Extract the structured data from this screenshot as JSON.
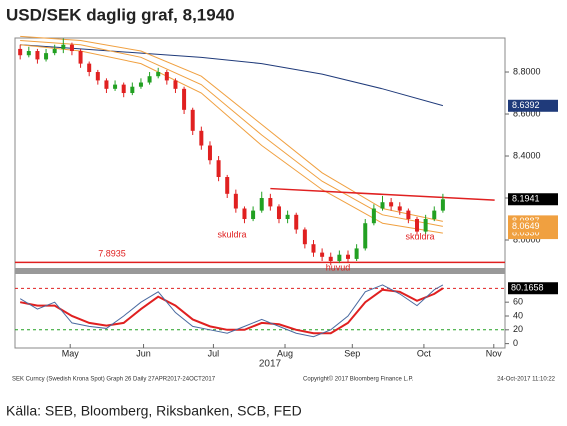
{
  "chart_data": {
    "type": "candlestick",
    "title": "USD/SEK daglig graf, 8,1940",
    "categories": [
      null,
      null,
      null,
      null,
      null,
      null,
      null,
      null,
      null,
      null,
      null,
      null,
      null,
      null,
      null,
      null,
      null,
      null,
      null,
      null,
      null,
      null,
      null,
      null,
      null,
      null,
      null,
      null,
      null,
      null,
      null,
      null,
      null,
      null,
      null,
      null,
      null,
      null,
      null,
      null,
      null,
      null,
      null,
      null,
      null,
      null,
      null,
      null,
      null,
      null
    ],
    "open": [
      8.91,
      8.88,
      8.9,
      8.86,
      8.89,
      8.91,
      8.93,
      8.9,
      8.84,
      8.8,
      8.76,
      8.72,
      8.74,
      8.7,
      8.73,
      8.75,
      8.78,
      8.8,
      8.76,
      8.72,
      8.62,
      8.52,
      8.45,
      8.38,
      8.3,
      8.22,
      8.15,
      8.1,
      8.14,
      8.2,
      8.16,
      8.1,
      8.12,
      8.05,
      7.98,
      7.94,
      7.92,
      7.9,
      7.93,
      7.91,
      7.96,
      8.08,
      8.15,
      8.18,
      8.16,
      8.14,
      8.1,
      8.04,
      8.1,
      8.14
    ],
    "high": [
      8.93,
      8.92,
      8.91,
      8.91,
      8.93,
      8.96,
      8.94,
      8.91,
      8.85,
      8.81,
      8.77,
      8.76,
      8.75,
      8.75,
      8.77,
      8.8,
      8.82,
      8.81,
      8.77,
      8.73,
      8.63,
      8.54,
      8.47,
      8.4,
      8.31,
      8.24,
      8.16,
      8.16,
      8.23,
      8.22,
      8.17,
      8.14,
      8.13,
      8.06,
      8.0,
      7.96,
      7.94,
      7.95,
      7.95,
      7.98,
      8.1,
      8.17,
      8.21,
      8.2,
      8.18,
      8.15,
      8.11,
      8.12,
      8.16,
      8.22
    ],
    "low": [
      8.86,
      8.87,
      8.84,
      8.85,
      8.88,
      8.89,
      8.88,
      8.82,
      8.78,
      8.74,
      8.7,
      8.71,
      8.68,
      8.69,
      8.72,
      8.74,
      8.77,
      8.74,
      8.7,
      8.6,
      8.5,
      8.43,
      8.36,
      8.28,
      8.2,
      8.13,
      8.08,
      8.09,
      8.13,
      8.14,
      8.08,
      8.08,
      8.03,
      7.96,
      7.92,
      7.9,
      7.88,
      7.89,
      7.89,
      7.9,
      7.95,
      8.07,
      8.14,
      8.14,
      8.12,
      8.08,
      8.02,
      8.03,
      8.09,
      8.13
    ],
    "close": [
      8.88,
      8.9,
      8.86,
      8.89,
      8.91,
      8.93,
      8.9,
      8.84,
      8.8,
      8.76,
      8.72,
      8.74,
      8.7,
      8.73,
      8.75,
      8.78,
      8.8,
      8.76,
      8.72,
      8.62,
      8.52,
      8.45,
      8.38,
      8.3,
      8.22,
      8.15,
      8.1,
      8.14,
      8.2,
      8.16,
      8.1,
      8.12,
      8.05,
      7.98,
      7.94,
      7.92,
      7.9,
      7.93,
      7.91,
      7.96,
      8.08,
      8.15,
      8.18,
      8.16,
      8.14,
      8.1,
      8.04,
      8.1,
      8.14,
      8.194
    ],
    "up_color": "#22a022",
    "down_color": "#e02020",
    "lines": [
      {
        "color": "#1f3a7a",
        "x": [
          0,
          7,
          14,
          21,
          28,
          35,
          42,
          49
        ],
        "values": [
          8.93,
          8.91,
          8.89,
          8.87,
          8.84,
          8.79,
          8.72,
          8.64
        ]
      },
      {
        "color": "#f0a040",
        "x": [
          0,
          7,
          14,
          21,
          28,
          35,
          42,
          49
        ],
        "values": [
          8.97,
          8.95,
          8.9,
          8.78,
          8.55,
          8.32,
          8.15,
          8.0887
        ]
      },
      {
        "color": "#f0a040",
        "x": [
          0,
          7,
          14,
          21,
          28,
          35,
          42,
          49
        ],
        "values": [
          8.95,
          8.93,
          8.87,
          8.74,
          8.5,
          8.28,
          8.12,
          8.0649
        ]
      },
      {
        "color": "#f0a040",
        "x": [
          0,
          7,
          14,
          21,
          28,
          35,
          42,
          49
        ],
        "values": [
          8.93,
          8.9,
          8.84,
          8.7,
          8.45,
          8.24,
          8.08,
          8.033
        ]
      }
    ],
    "trendline": {
      "color": "#e02020",
      "x": [
        29,
        55
      ],
      "values": [
        8.245,
        8.19
      ]
    },
    "support": {
      "value": 7.8935,
      "label": "7.8935",
      "color": "#e02020"
    },
    "annotations": [
      "skuldra",
      "huvud",
      "skuldra"
    ],
    "markers": [
      {
        "value": 8.6392,
        "label": "8.6392",
        "color": "#1f3a7a"
      },
      {
        "value": 8.1941,
        "label": "8.1941",
        "color": "#000000"
      },
      {
        "value": 8.0887,
        "label": "8.0887",
        "color": "#f0a040"
      },
      {
        "value": 8.033,
        "label": "8.0330",
        "color": "#f0a040"
      },
      {
        "value": 8.0649,
        "label": "8.0649",
        "color": "#f0a040"
      }
    ],
    "xlim": [
      -0.6,
      56.2
    ],
    "xticks": [
      {
        "value": 5.8,
        "label": "May"
      },
      {
        "value": 14.3,
        "label": "Jun"
      },
      {
        "value": 22.4,
        "label": "Jul"
      },
      {
        "value": 30.7,
        "label": "Aug"
      },
      {
        "value": 38.5,
        "label": "Sep"
      },
      {
        "value": 46.8,
        "label": "Oct"
      },
      {
        "value": 54.9,
        "label": "Nov"
      }
    ],
    "year_label": "2017",
    "ylim": [
      7.881,
      8.962
    ],
    "yticks": [
      {
        "value": 8.0,
        "label": "8.0000"
      },
      {
        "value": 8.2,
        "label": "8.2000"
      },
      {
        "value": 8.4,
        "label": "8.4000"
      },
      {
        "value": 8.6,
        "label": "8.6000"
      },
      {
        "value": 8.8,
        "label": "8.8000"
      }
    ],
    "oscillator": {
      "ylim": [
        -2,
        95
      ],
      "yticks": [
        0,
        20,
        40,
        60
      ],
      "levels": [
        {
          "value": 80,
          "color": "#e02020"
        },
        {
          "value": 20,
          "color": "#22a022"
        }
      ],
      "x": [
        0,
        2,
        4,
        6,
        8,
        10,
        12,
        14,
        16,
        18,
        20,
        22,
        24,
        26,
        28,
        30,
        32,
        34,
        36,
        38,
        40,
        42,
        44,
        46,
        48,
        49
      ],
      "series": [
        {
          "color": "#e02020",
          "values": [
            60,
            55,
            55,
            40,
            30,
            26,
            30,
            50,
            68,
            55,
            35,
            25,
            20,
            20,
            30,
            28,
            20,
            15,
            15,
            30,
            60,
            78,
            75,
            62,
            72,
            80.1658
          ]
        },
        {
          "color": "#4a6aa0",
          "values": [
            65,
            50,
            60,
            30,
            25,
            22,
            40,
            60,
            75,
            45,
            25,
            20,
            15,
            25,
            35,
            25,
            15,
            10,
            20,
            40,
            75,
            85,
            72,
            55,
            78,
            85
          ]
        }
      ],
      "marker": {
        "value": 80.1658,
        "label": "80.1658",
        "color": "#000000"
      }
    },
    "footer": [
      "SEK Curncy (Swedish Krona Spot) Graph 26  Daily 27APR2017-24OCT2017",
      "Copyright© 2017 Bloomberg Finance L.P.",
      "24-Oct-2017 11:10:22"
    ],
    "source": "Källa: SEB, Bloomberg, Riksbanken, SCB, FED"
  }
}
